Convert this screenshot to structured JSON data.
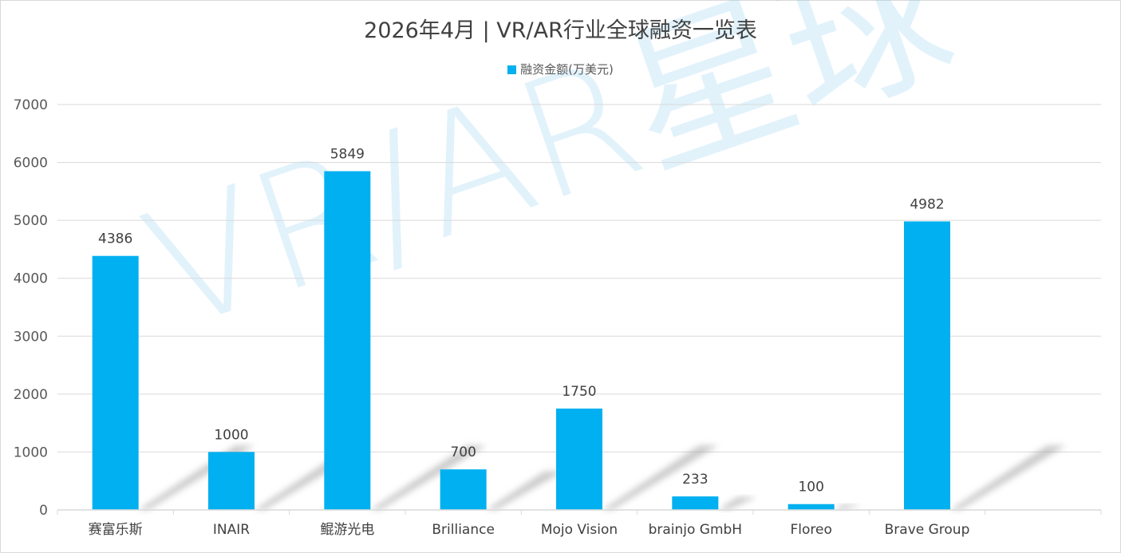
{
  "chart_data": {
    "type": "bar",
    "title": "2026年4月 | VR/AR行业全球融资一览表",
    "categories": [
      "赛富乐斯",
      "INAIR",
      "鲲游光电",
      "Brilliance",
      "Mojo Vision",
      "brainjo GmbH",
      "Floreo",
      "Brave Group",
      ""
    ],
    "series": [
      {
        "name": "融资金额(万美元)",
        "values": [
          4386,
          1000,
          5849,
          700,
          1750,
          233,
          100,
          4982,
          null
        ],
        "color": "#00B0F0"
      }
    ],
    "data_labels": [
      "4386",
      "1000",
      "5849",
      "700",
      "1750",
      "233",
      "100",
      "4982",
      ""
    ],
    "xlabel": "",
    "ylabel": "",
    "ylim": [
      0,
      7000
    ],
    "yticks": [
      "0",
      "1000",
      "2000",
      "3000",
      "4000",
      "5000",
      "6000",
      "7000"
    ],
    "grid": true,
    "legend_position": "top",
    "watermark": "VR/AR星球"
  }
}
